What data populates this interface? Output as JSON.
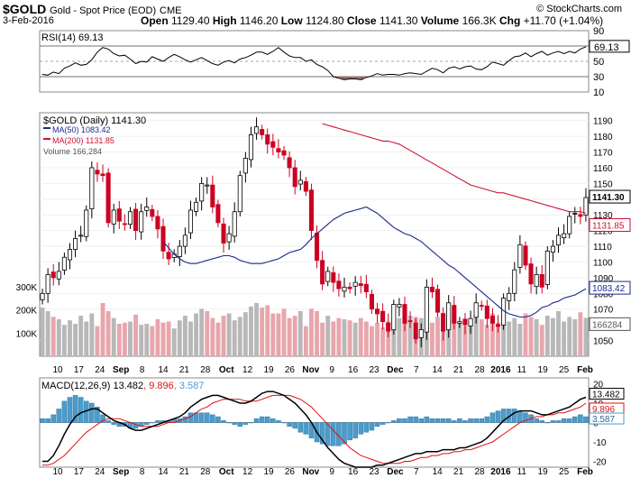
{
  "header": {
    "symbol": "$GOLD",
    "description": "Gold - Spot Price (EOD)",
    "exchange": "CME",
    "copyright": "© StockCharts.com",
    "date": "3-Feb-2016",
    "open_label": "Open",
    "open": "1129.40",
    "high_label": "High",
    "high": "1146.20",
    "low_label": "Low",
    "low": "1124.80",
    "close_label": "Close",
    "close": "1141.30",
    "volume_label": "Volume",
    "volume": "166.3K",
    "chg_label": "Chg",
    "chg": "+11.70 (+1.04%)"
  },
  "colors": {
    "up": "#000000",
    "down": "#cc0022",
    "ma50": "#1a2a8c",
    "ma200": "#cc1133",
    "vol_up": "#b8b8b8",
    "vol_down": "#e8a6ac",
    "macd_hist": "#4a9ccc",
    "signal": "#e01010"
  },
  "chart_data": [
    {
      "type": "line",
      "name": "rsi",
      "title": "RSI(14) 69.13",
      "ylim": [
        10,
        90
      ],
      "yticks": [
        90,
        70,
        50,
        30,
        10
      ],
      "levels": [
        30,
        70
      ],
      "last_label": "69.13",
      "values": [
        33,
        32,
        36,
        34,
        41,
        44,
        48,
        45,
        46,
        52,
        62,
        68,
        66,
        60,
        57,
        58,
        53,
        47,
        50,
        49,
        56,
        53,
        50,
        55,
        59,
        56,
        52,
        49,
        52,
        55,
        51,
        47,
        45,
        49,
        51,
        48,
        53,
        55,
        58,
        62,
        62,
        59,
        63,
        68,
        62,
        57,
        55,
        55,
        50,
        52,
        46,
        43,
        38,
        30,
        28,
        26,
        27,
        27,
        26,
        29,
        31,
        34,
        32,
        33,
        33,
        32,
        34,
        35,
        34,
        33,
        37,
        41,
        39,
        35,
        41,
        43,
        40,
        43,
        44,
        40,
        39,
        43,
        49,
        47,
        45,
        51,
        56,
        57,
        61,
        56,
        60,
        63,
        58,
        61,
        63,
        60,
        63,
        61,
        66,
        69
      ]
    },
    {
      "type": "candlestick",
      "name": "price",
      "title": "$GOLD (Daily) 1141.30",
      "ylim": [
        1040,
        1195
      ],
      "yticks": [
        1190,
        1180,
        1170,
        1160,
        1150,
        1140,
        1130,
        1120,
        1110,
        1100,
        1090,
        1080,
        1070,
        1060,
        1050
      ],
      "x_tick_labels": [
        "10",
        "17",
        "24",
        "Sep",
        "8",
        "14",
        "21",
        "28",
        "Oct",
        "12",
        "19",
        "26",
        "Nov",
        "9",
        "16",
        "23",
        "Dec",
        "7",
        "14",
        "21",
        "28",
        "2016",
        "11",
        "19",
        "25",
        "Feb"
      ],
      "legend": {
        "ma50": "MA(50) 1083.42",
        "ma200": "MA(200) 1131.85",
        "volume": "Volume 166,284"
      },
      "price_labels": {
        "last": "1141.30",
        "ma200": "1131.85",
        "ma50": "1083.42",
        "volume": "166284"
      },
      "close": [
        1080,
        1092,
        1090,
        1094,
        1103,
        1108,
        1115,
        1117,
        1133,
        1160,
        1156,
        1155,
        1125,
        1133,
        1126,
        1124,
        1132,
        1120,
        1132,
        1135,
        1129,
        1121,
        1107,
        1102,
        1105,
        1110,
        1117,
        1133,
        1138,
        1150,
        1149,
        1135,
        1125,
        1112,
        1118,
        1132,
        1155,
        1166,
        1181,
        1186,
        1181,
        1175,
        1173,
        1170,
        1168,
        1160,
        1148,
        1152,
        1145,
        1120,
        1101,
        1086,
        1094,
        1087,
        1083,
        1084,
        1083,
        1087,
        1085,
        1081,
        1070,
        1067,
        1062,
        1056,
        1073,
        1073,
        1061,
        1062,
        1051,
        1057,
        1084,
        1081,
        1068,
        1056,
        1074,
        1061,
        1062,
        1060,
        1064,
        1074,
        1072,
        1064,
        1061,
        1059,
        1077,
        1080,
        1095,
        1111,
        1098,
        1086,
        1092,
        1084,
        1107,
        1110,
        1117,
        1118,
        1129,
        1131,
        1129,
        1141
      ],
      "ma50": [
        1113,
        1109,
        1105,
        1102,
        1100,
        1099,
        1099,
        1100,
        1101,
        1102,
        1103,
        1104,
        1104,
        1103,
        1101,
        1100,
        1099,
        1099,
        1099,
        1100,
        1101,
        1102,
        1104,
        1106,
        1107,
        1108,
        1111,
        1115,
        1118,
        1121,
        1124,
        1127,
        1129,
        1131,
        1132,
        1133,
        1134,
        1135,
        1133,
        1131,
        1128,
        1125,
        1122,
        1120,
        1118,
        1117,
        1115,
        1113,
        1110,
        1107,
        1104,
        1101,
        1098,
        1096,
        1093,
        1090,
        1087,
        1084,
        1081,
        1078,
        1075,
        1072,
        1069,
        1067,
        1066,
        1065,
        1065,
        1066,
        1068,
        1071,
        1072,
        1074,
        1075,
        1077,
        1078,
        1079,
        1081,
        1083
      ],
      "ma200": [
        1188,
        1187,
        1186,
        1185,
        1184,
        1183,
        1182,
        1181,
        1180,
        1179,
        1178,
        1177,
        1177,
        1176,
        1175,
        1173,
        1171,
        1169,
        1167,
        1165,
        1163,
        1161,
        1159,
        1157,
        1155,
        1153,
        1151,
        1149,
        1148,
        1147,
        1146,
        1145,
        1144,
        1144,
        1143,
        1142,
        1141,
        1140,
        1139,
        1138,
        1137,
        1136,
        1135,
        1134,
        1133,
        1132,
        1132,
        1132,
        1131
      ],
      "volume": [
        210,
        195,
        170,
        160,
        135,
        155,
        140,
        175,
        150,
        185,
        130,
        230,
        195,
        165,
        140,
        145,
        150,
        180,
        135,
        140,
        130,
        160,
        145,
        150,
        120,
        155,
        175,
        150,
        185,
        205,
        195,
        165,
        145,
        175,
        185,
        155,
        170,
        190,
        215,
        230,
        210,
        220,
        185,
        185,
        205,
        165,
        175,
        195,
        130,
        205,
        195,
        145,
        175,
        150,
        165,
        160,
        155,
        145,
        165,
        150,
        130,
        145,
        125,
        150,
        160,
        165,
        185,
        175,
        170,
        165,
        125,
        145,
        170,
        185,
        165,
        180,
        140,
        130,
        145,
        185,
        160,
        135,
        185,
        145,
        190,
        150,
        165,
        140,
        185,
        170,
        160,
        135,
        175,
        165,
        195,
        150,
        170,
        160,
        190,
        166
      ],
      "volume_ylim": [
        0,
        370
      ],
      "volume_ticks": [
        "300K",
        "200K",
        "100K"
      ]
    },
    {
      "type": "line",
      "name": "macd",
      "title": "MACD(12,26,9) 13.482, 9.896, 3.587",
      "ylim": [
        -23,
        23
      ],
      "yticks": [
        20,
        10,
        0,
        -10,
        -20
      ],
      "last_labels": {
        "macd": "13.482",
        "signal": "9.896",
        "hist": "3.587"
      },
      "macd": [
        -20,
        -20,
        -17,
        -12,
        -6,
        -1,
        3,
        5,
        6,
        7,
        7,
        5,
        3,
        1,
        0,
        -1,
        -3,
        -4,
        -4,
        -3,
        -2,
        -1,
        0,
        1,
        2,
        3,
        5,
        8,
        10,
        12,
        13,
        14,
        14,
        13,
        12,
        11,
        10,
        10,
        11,
        13,
        15,
        16,
        16,
        15,
        14,
        12,
        10,
        7,
        4,
        0,
        -5,
        -9,
        -13,
        -16,
        -19,
        -21,
        -22,
        -23,
        -23,
        -23,
        -23,
        -22,
        -22,
        -21,
        -20,
        -19,
        -18,
        -17,
        -16,
        -16,
        -15,
        -15,
        -15,
        -14,
        -14,
        -14,
        -13,
        -13,
        -12,
        -11,
        -10,
        -8,
        -5,
        -2,
        1,
        3,
        5,
        6,
        6,
        6,
        5,
        4,
        4,
        5,
        6,
        7,
        8,
        10,
        12,
        13
      ],
      "signal": [
        -22,
        -22,
        -21,
        -19,
        -17,
        -14,
        -11,
        -8,
        -5,
        -3,
        -1,
        1,
        2,
        2,
        2,
        1,
        0,
        -1,
        -2,
        -2,
        -2,
        -2,
        -1,
        0,
        0,
        1,
        2,
        3,
        5,
        7,
        8,
        10,
        11,
        12,
        12,
        12,
        12,
        11,
        11,
        11,
        12,
        13,
        14,
        14,
        14,
        14,
        13,
        12,
        10,
        8,
        5,
        2,
        -1,
        -4,
        -7,
        -10,
        -13,
        -15,
        -17,
        -18,
        -19,
        -20,
        -21,
        -21,
        -21,
        -21,
        -20,
        -20,
        -19,
        -18,
        -18,
        -17,
        -17,
        -16,
        -16,
        -15,
        -15,
        -14,
        -14,
        -13,
        -12,
        -11,
        -10,
        -8,
        -6,
        -4,
        -2,
        0,
        1,
        2,
        3,
        3,
        4,
        4,
        5,
        5,
        6,
        7,
        8,
        10
      ]
    }
  ]
}
